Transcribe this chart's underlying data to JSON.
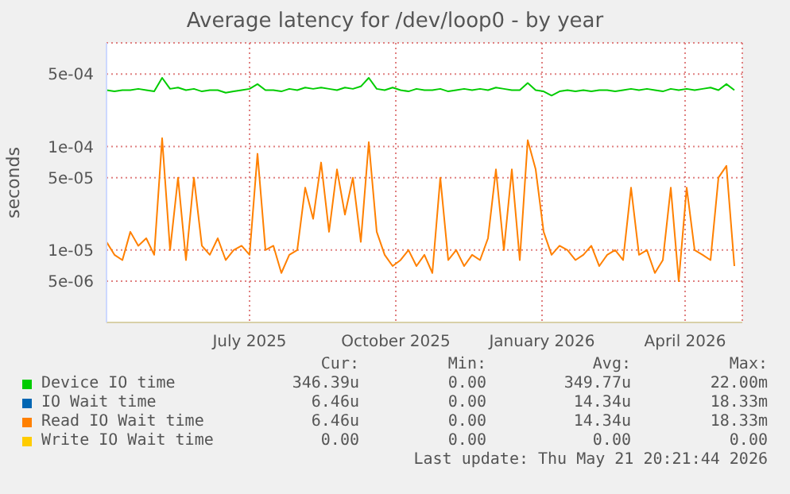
{
  "chart_data": {
    "type": "line",
    "title": "Average latency for /dev/loop0 - by year",
    "ylabel": "seconds",
    "log": "y",
    "grid": true,
    "legend": "bottom",
    "marker": "none",
    "line_style": "solid",
    "xlim": [
      "2025-04-16",
      "2026-05-21"
    ],
    "xticks": [
      {
        "value": "2025-07-15",
        "label": "July 2025"
      },
      {
        "value": "2025-10-15",
        "label": "October 2025"
      },
      {
        "value": "2026-01-15",
        "label": "January 2026"
      },
      {
        "value": "2026-04-15",
        "label": "April 2026"
      }
    ],
    "ylim": [
      2e-06,
      0.001
    ],
    "yticks": [
      {
        "value": 5e-06,
        "label": "5e-06"
      },
      {
        "value": 1e-05,
        "label": "1e-05"
      },
      {
        "value": 5e-05,
        "label": "5e-05"
      },
      {
        "value": 0.0001,
        "label": "1e-04"
      },
      {
        "value": 0.0005,
        "label": "5e-04"
      }
    ],
    "x": [
      "2025-04-16",
      "2025-04-21",
      "2025-04-26",
      "2025-05-01",
      "2025-05-06",
      "2025-05-11",
      "2025-05-16",
      "2025-05-21",
      "2025-05-26",
      "2025-05-31",
      "2025-06-05",
      "2025-06-10",
      "2025-06-15",
      "2025-06-20",
      "2025-06-25",
      "2025-06-30",
      "2025-07-05",
      "2025-07-10",
      "2025-07-15",
      "2025-07-20",
      "2025-07-25",
      "2025-07-30",
      "2025-08-04",
      "2025-08-09",
      "2025-08-14",
      "2025-08-19",
      "2025-08-24",
      "2025-08-29",
      "2025-09-03",
      "2025-09-08",
      "2025-09-13",
      "2025-09-18",
      "2025-09-23",
      "2025-09-28",
      "2025-10-03",
      "2025-10-08",
      "2025-10-13",
      "2025-10-18",
      "2025-10-23",
      "2025-10-28",
      "2025-11-02",
      "2025-11-07",
      "2025-11-12",
      "2025-11-17",
      "2025-11-22",
      "2025-11-27",
      "2025-12-02",
      "2025-12-07",
      "2025-12-12",
      "2025-12-17",
      "2025-12-22",
      "2025-12-27",
      "2026-01-01",
      "2026-01-06",
      "2026-01-11",
      "2026-01-16",
      "2026-01-21",
      "2026-01-26",
      "2026-01-31",
      "2026-02-05",
      "2026-02-10",
      "2026-02-15",
      "2026-02-20",
      "2026-02-25",
      "2026-03-02",
      "2026-03-07",
      "2026-03-12",
      "2026-03-17",
      "2026-03-22",
      "2026-03-27",
      "2026-04-01",
      "2026-04-06",
      "2026-04-11",
      "2026-04-16",
      "2026-04-21",
      "2026-04-26",
      "2026-05-01",
      "2026-05-06",
      "2026-05-11",
      "2026-05-16"
    ],
    "series": [
      {
        "name": "Device IO time",
        "color": "#00cc00",
        "values": [
          0.00035,
          0.00034,
          0.00035,
          0.00035,
          0.00036,
          0.00035,
          0.00034,
          0.00046,
          0.00036,
          0.00037,
          0.00035,
          0.00036,
          0.00034,
          0.00035,
          0.00035,
          0.00033,
          0.00034,
          0.00035,
          0.00036,
          0.0004,
          0.00035,
          0.00035,
          0.00034,
          0.00036,
          0.00035,
          0.00037,
          0.00036,
          0.00037,
          0.00036,
          0.00035,
          0.00037,
          0.00036,
          0.00038,
          0.00046,
          0.00036,
          0.00035,
          0.00037,
          0.00035,
          0.00034,
          0.00036,
          0.00035,
          0.00035,
          0.00036,
          0.00034,
          0.00035,
          0.00036,
          0.00035,
          0.00036,
          0.00035,
          0.00037,
          0.00036,
          0.00035,
          0.00035,
          0.00041,
          0.00035,
          0.00034,
          0.00031,
          0.00034,
          0.00035,
          0.00034,
          0.00035,
          0.00034,
          0.00035,
          0.00035,
          0.00034,
          0.00035,
          0.00036,
          0.00035,
          0.00036,
          0.00035,
          0.00034,
          0.00036,
          0.00035,
          0.00036,
          0.00035,
          0.00036,
          0.00037,
          0.00035,
          0.0004,
          0.00035
        ]
      },
      {
        "name": "IO Wait time",
        "color": "#0066b3",
        "values": [
          null,
          null,
          null,
          null,
          null,
          null,
          null,
          null,
          null,
          null,
          null,
          null,
          null,
          null,
          null,
          null,
          null,
          null,
          null,
          null,
          null,
          null,
          null,
          null,
          null,
          null,
          null,
          null,
          null,
          null,
          null,
          null,
          null,
          null,
          null,
          null,
          null,
          null,
          null,
          null,
          null,
          null,
          null,
          null,
          null,
          null,
          null,
          null,
          null,
          null,
          null,
          null,
          null,
          null,
          null,
          null,
          null,
          null,
          null,
          null,
          null,
          null,
          null,
          null,
          null,
          null,
          null,
          null,
          null,
          null,
          null,
          null,
          null,
          null,
          null,
          null,
          null,
          null,
          null,
          null
        ]
      },
      {
        "name": "Read IO Wait time",
        "color": "#ff8000",
        "values": [
          1.2e-05,
          9e-06,
          8e-06,
          1.5e-05,
          1.1e-05,
          1.3e-05,
          9e-06,
          0.00012,
          1e-05,
          5e-05,
          8e-06,
          5e-05,
          1.1e-05,
          9e-06,
          1.3e-05,
          8e-06,
          1e-05,
          1.1e-05,
          9e-06,
          8.5e-05,
          1e-05,
          1.1e-05,
          6e-06,
          9e-06,
          1e-05,
          4e-05,
          2e-05,
          7e-05,
          1.5e-05,
          6e-05,
          2.2e-05,
          5e-05,
          1.2e-05,
          0.00011,
          1.5e-05,
          9e-06,
          7e-06,
          8e-06,
          1e-05,
          7e-06,
          9e-06,
          6e-06,
          5e-05,
          8e-06,
          1e-05,
          7e-06,
          9e-06,
          8e-06,
          1.3e-05,
          6e-05,
          1e-05,
          6e-05,
          8e-06,
          0.000115,
          6e-05,
          1.5e-05,
          9e-06,
          1.1e-05,
          1e-05,
          8e-06,
          9e-06,
          1.1e-05,
          7e-06,
          9e-06,
          1e-05,
          8e-06,
          4e-05,
          9e-06,
          1e-05,
          6e-06,
          8e-06,
          4e-05,
          5e-06,
          4e-05,
          1e-05,
          9e-06,
          8e-06,
          5e-05,
          6.5e-05,
          7e-06
        ]
      },
      {
        "name": "Write IO Wait time",
        "color": "#ffcc00",
        "values": [
          null,
          null,
          null,
          null,
          null,
          null,
          null,
          null,
          null,
          null,
          null,
          null,
          null,
          null,
          null,
          null,
          null,
          null,
          null,
          null,
          null,
          null,
          null,
          null,
          null,
          null,
          null,
          null,
          null,
          null,
          null,
          null,
          null,
          null,
          null,
          null,
          null,
          null,
          null,
          null,
          null,
          null,
          null,
          null,
          null,
          null,
          null,
          null,
          null,
          null,
          null,
          null,
          null,
          null,
          null,
          null,
          null,
          null,
          null,
          null,
          null,
          null,
          null,
          null,
          null,
          null,
          null,
          null,
          null,
          null,
          null,
          null,
          null,
          null,
          null,
          null,
          null,
          null,
          null,
          null
        ]
      }
    ],
    "annotations": [
      "Cur:",
      "Min:",
      "Avg:",
      "Max:",
      "346.39u",
      "0.00",
      "349.77u",
      "22.00m",
      "6.46u",
      "0.00",
      "14.34u",
      "18.33m",
      "6.46u",
      "0.00",
      "14.34u",
      "18.33m",
      "0.00",
      "0.00",
      "0.00",
      "0.00",
      "Last update: Thu May 21 20:21:44 2026"
    ]
  }
}
